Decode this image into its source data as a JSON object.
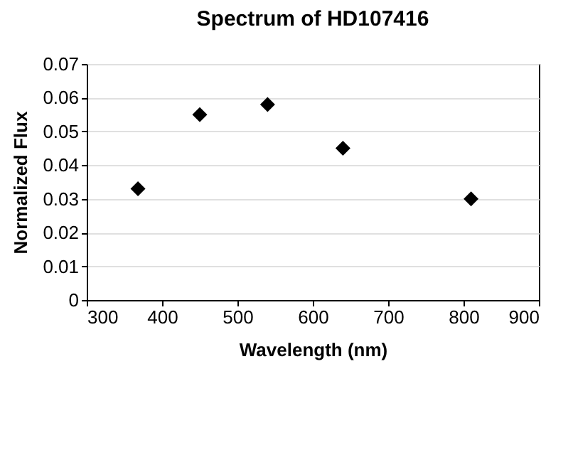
{
  "chart_data": {
    "type": "scatter",
    "title": "Spectrum of HD107416",
    "xlabel": "Wavelength (nm)",
    "ylabel": "Normalized Flux",
    "x": [
      368,
      450,
      540,
      640,
      810
    ],
    "series": [
      {
        "color": "#000000",
        "values": [
          0.033,
          0.055,
          0.058,
          0.045,
          0.03
        ]
      }
    ],
    "xlim": [
      300,
      900
    ],
    "xticks": [
      300,
      400,
      500,
      600,
      700,
      800,
      900
    ],
    "ylim": [
      0,
      0.07
    ],
    "yticks": [
      0,
      0.01,
      0.02,
      0.03,
      0.04,
      0.05,
      0.06,
      0.07
    ],
    "grid": "y",
    "marker": "diamond",
    "legend": false
  }
}
